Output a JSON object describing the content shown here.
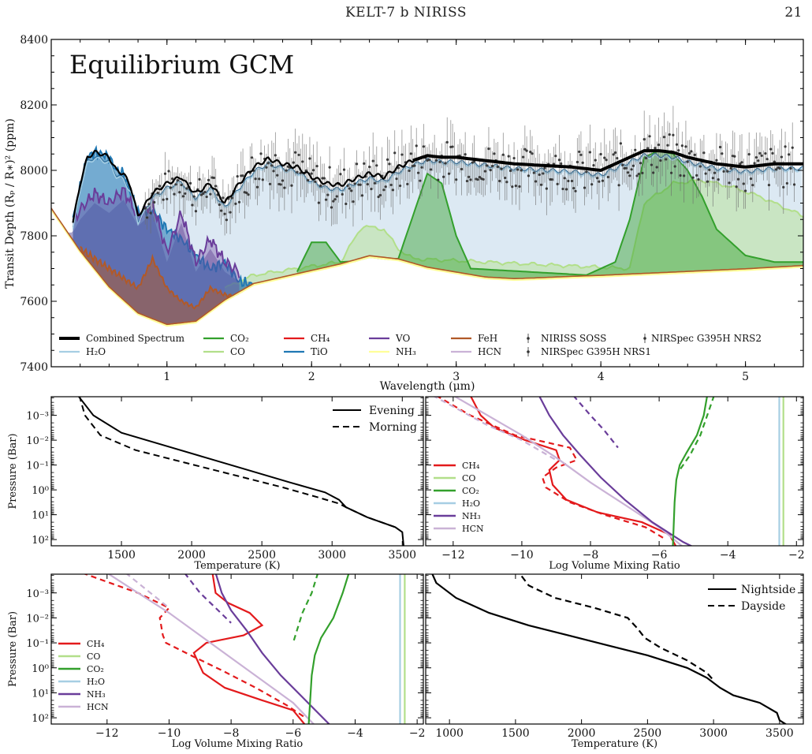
{
  "header": {
    "running_title": "KELT-7 b NIRISS",
    "page_number": "21"
  },
  "colors": {
    "combined": "#000000",
    "h2o": "#a6cee3",
    "co2": "#33a02c",
    "co": "#b2df8a",
    "ch4": "#e31a1c",
    "tio": "#1f78b4",
    "vo": "#6a3d9a",
    "nh3": "#ffff99",
    "feh": "#b15928",
    "hcn": "#cab2d6",
    "fill_light": "#dce9f3",
    "data": "#555555"
  },
  "chart_data": [
    {
      "type": "line",
      "panel": "spectrum",
      "annotation": "Equilibrium GCM",
      "xlabel": "Wavelength (μm)",
      "ylabel": "Transit Depth (Rₚ / R∗)² (ppm)",
      "xlim": [
        0.2,
        5.4
      ],
      "ylim": [
        7400,
        8400
      ],
      "xticks": [
        "1",
        "2",
        "3",
        "4",
        "5"
      ],
      "yticks": [
        "7400",
        "7600",
        "7800",
        "8000",
        "8200",
        "8400"
      ],
      "legend_position": "bottom",
      "legend": [
        {
          "label": "Combined Spectrum",
          "key": "combined"
        },
        {
          "label": "H₂O",
          "key": "h2o"
        },
        {
          "label": "CO₂",
          "key": "co2"
        },
        {
          "label": "CO",
          "key": "co"
        },
        {
          "label": "CH₄",
          "key": "ch4"
        },
        {
          "label": "TiO",
          "key": "tio"
        },
        {
          "label": "VO",
          "key": "vo"
        },
        {
          "label": "NH₃",
          "key": "nh3"
        },
        {
          "label": "FeH",
          "key": "feh"
        },
        {
          "label": "HCN",
          "key": "hcn"
        },
        {
          "label": "NIRISS SOSS",
          "key": "data"
        },
        {
          "label": "NIRSpec G395H NRS1",
          "key": "data"
        },
        {
          "label": "NIRSpec G395H NRS2",
          "key": "data"
        }
      ],
      "series": [
        {
          "key": "baseline",
          "x": [
            0.2,
            0.4,
            0.6,
            0.8,
            1.0,
            1.2,
            1.4,
            1.6,
            1.8,
            2.0,
            2.2,
            2.4,
            2.6,
            2.8,
            3.0,
            3.2,
            3.4,
            3.6,
            3.8,
            4.0,
            4.5,
            5.0,
            5.4
          ],
          "y": [
            7880,
            7750,
            7640,
            7560,
            7525,
            7535,
            7600,
            7650,
            7670,
            7690,
            7710,
            7735,
            7725,
            7700,
            7685,
            7670,
            7665,
            7668,
            7672,
            7675,
            7685,
            7695,
            7705
          ]
        },
        {
          "key": "combined",
          "x": [
            0.35,
            0.4,
            0.45,
            0.5,
            0.55,
            0.6,
            0.65,
            0.7,
            0.75,
            0.8,
            0.9,
            1.0,
            1.05,
            1.1,
            1.15,
            1.2,
            1.3,
            1.4,
            1.5,
            1.6,
            1.7,
            1.8,
            1.9,
            2.0,
            2.1,
            2.2,
            2.3,
            2.4,
            2.5,
            2.6,
            2.7,
            2.8,
            2.9,
            3.0,
            3.2,
            3.4,
            3.6,
            3.8,
            4.0,
            4.2,
            4.3,
            4.4,
            4.5,
            4.6,
            4.8,
            5.0,
            5.2,
            5.4
          ],
          "y": [
            7840,
            7960,
            8040,
            8055,
            8050,
            8040,
            8000,
            7990,
            7950,
            7860,
            7930,
            7960,
            7970,
            7980,
            7950,
            7930,
            7960,
            7900,
            7960,
            8010,
            8035,
            8020,
            8010,
            7980,
            7960,
            7955,
            7975,
            7990,
            7980,
            8010,
            8030,
            8045,
            8040,
            8040,
            8030,
            8020,
            8015,
            8010,
            8000,
            8040,
            8060,
            8060,
            8055,
            8040,
            8020,
            8010,
            8020,
            8020
          ]
        },
        {
          "key": "co2",
          "x": [
            1.9,
            2.0,
            2.1,
            2.2,
            2.6,
            2.7,
            2.8,
            2.9,
            3.0,
            3.1,
            3.9,
            4.1,
            4.2,
            4.3,
            4.4,
            4.5,
            4.6,
            4.7,
            4.8,
            5.0,
            5.2,
            5.4
          ],
          "y": [
            7690,
            7780,
            7780,
            7720,
            7730,
            7860,
            7990,
            7960,
            7800,
            7700,
            7680,
            7720,
            7850,
            8040,
            8060,
            8050,
            8000,
            7920,
            7820,
            7740,
            7720,
            7720
          ]
        },
        {
          "key": "co",
          "x": [
            1.4,
            1.6,
            2.2,
            2.35,
            2.5,
            2.6,
            2.7,
            4.2,
            4.3,
            4.5,
            4.7,
            4.9,
            5.1,
            5.3,
            5.4
          ],
          "y": [
            7640,
            7680,
            7720,
            7830,
            7820,
            7760,
            7730,
            7700,
            7900,
            7960,
            7970,
            7950,
            7920,
            7880,
            7860
          ]
        },
        {
          "key": "tio",
          "x": [
            0.35,
            0.4,
            0.45,
            0.5,
            0.55,
            0.6,
            0.65,
            0.7,
            0.8,
            0.9,
            1.0,
            1.1,
            1.2,
            1.3,
            1.4,
            1.5,
            1.6
          ],
          "y": [
            7850,
            7950,
            8040,
            8055,
            8050,
            8040,
            8000,
            7990,
            7870,
            7880,
            7820,
            7790,
            7740,
            7700,
            7720,
            7660,
            7650
          ]
        },
        {
          "key": "vo",
          "x": [
            0.35,
            0.4,
            0.5,
            0.6,
            0.7,
            0.8,
            0.9,
            1.0,
            1.1,
            1.2,
            1.3,
            1.4,
            1.5
          ],
          "y": [
            7840,
            7880,
            7930,
            7900,
            7940,
            7860,
            7900,
            7750,
            7870,
            7720,
            7790,
            7720,
            7690
          ]
        },
        {
          "key": "feh",
          "x": [
            0.4,
            0.6,
            0.8,
            0.9,
            1.0,
            1.1,
            1.2,
            1.3,
            1.4,
            1.5,
            1.6
          ],
          "y": [
            7760,
            7700,
            7640,
            7730,
            7640,
            7600,
            7580,
            7640,
            7620,
            7610,
            7640
          ]
        }
      ]
    },
    {
      "type": "line",
      "panel": "tp-evening-morning",
      "xlabel": "Temperature (K)",
      "ylabel": "Pressure (Bar)",
      "xlim": [
        1000,
        3650
      ],
      "xticks": [
        "1500",
        "2000",
        "2500",
        "3000",
        "3500"
      ],
      "yticks": [
        "10⁻³",
        "10⁻²",
        "10⁻¹",
        "10⁰",
        "10¹",
        "10²"
      ],
      "legend": [
        "Evening",
        "Morning"
      ],
      "legend_position": "top-right"
    },
    {
      "type": "line",
      "panel": "vmr-evening-morning",
      "xlabel": "Log Volume Mixing Ratio",
      "xlim": [
        -12.8,
        -1.8
      ],
      "xticks": [
        "−12",
        "−10",
        "−8",
        "−6",
        "−4",
        "−2"
      ],
      "legend": [
        "CH₄",
        "CO",
        "CO₂",
        "H₂O",
        "NH₃",
        "HCN"
      ],
      "legend_position": "bottom-left"
    },
    {
      "type": "line",
      "panel": "vmr-night-day",
      "xlabel": "Log Volume Mixing Ratio",
      "ylabel": "Pressure (Bar)",
      "xlim": [
        -13.8,
        -1.8
      ],
      "xticks": [
        "−12",
        "−10",
        "−8",
        "−6",
        "−4",
        "−2"
      ],
      "yticks": [
        "10⁻³",
        "10⁻²",
        "10⁻¹",
        "10⁰",
        "10¹",
        "10²"
      ],
      "legend": [
        "CH₄",
        "CO",
        "CO₂",
        "H₂O",
        "NH₃",
        "HCN"
      ],
      "legend_position": "bottom-left"
    },
    {
      "type": "line",
      "panel": "tp-night-day",
      "xlabel": "Temperature (K)",
      "xlim": [
        820,
        3680
      ],
      "xticks": [
        "1000",
        "1500",
        "2000",
        "2500",
        "3000",
        "3500"
      ],
      "legend": [
        "Nightside",
        "Dayside"
      ],
      "legend_position": "top-right"
    }
  ]
}
